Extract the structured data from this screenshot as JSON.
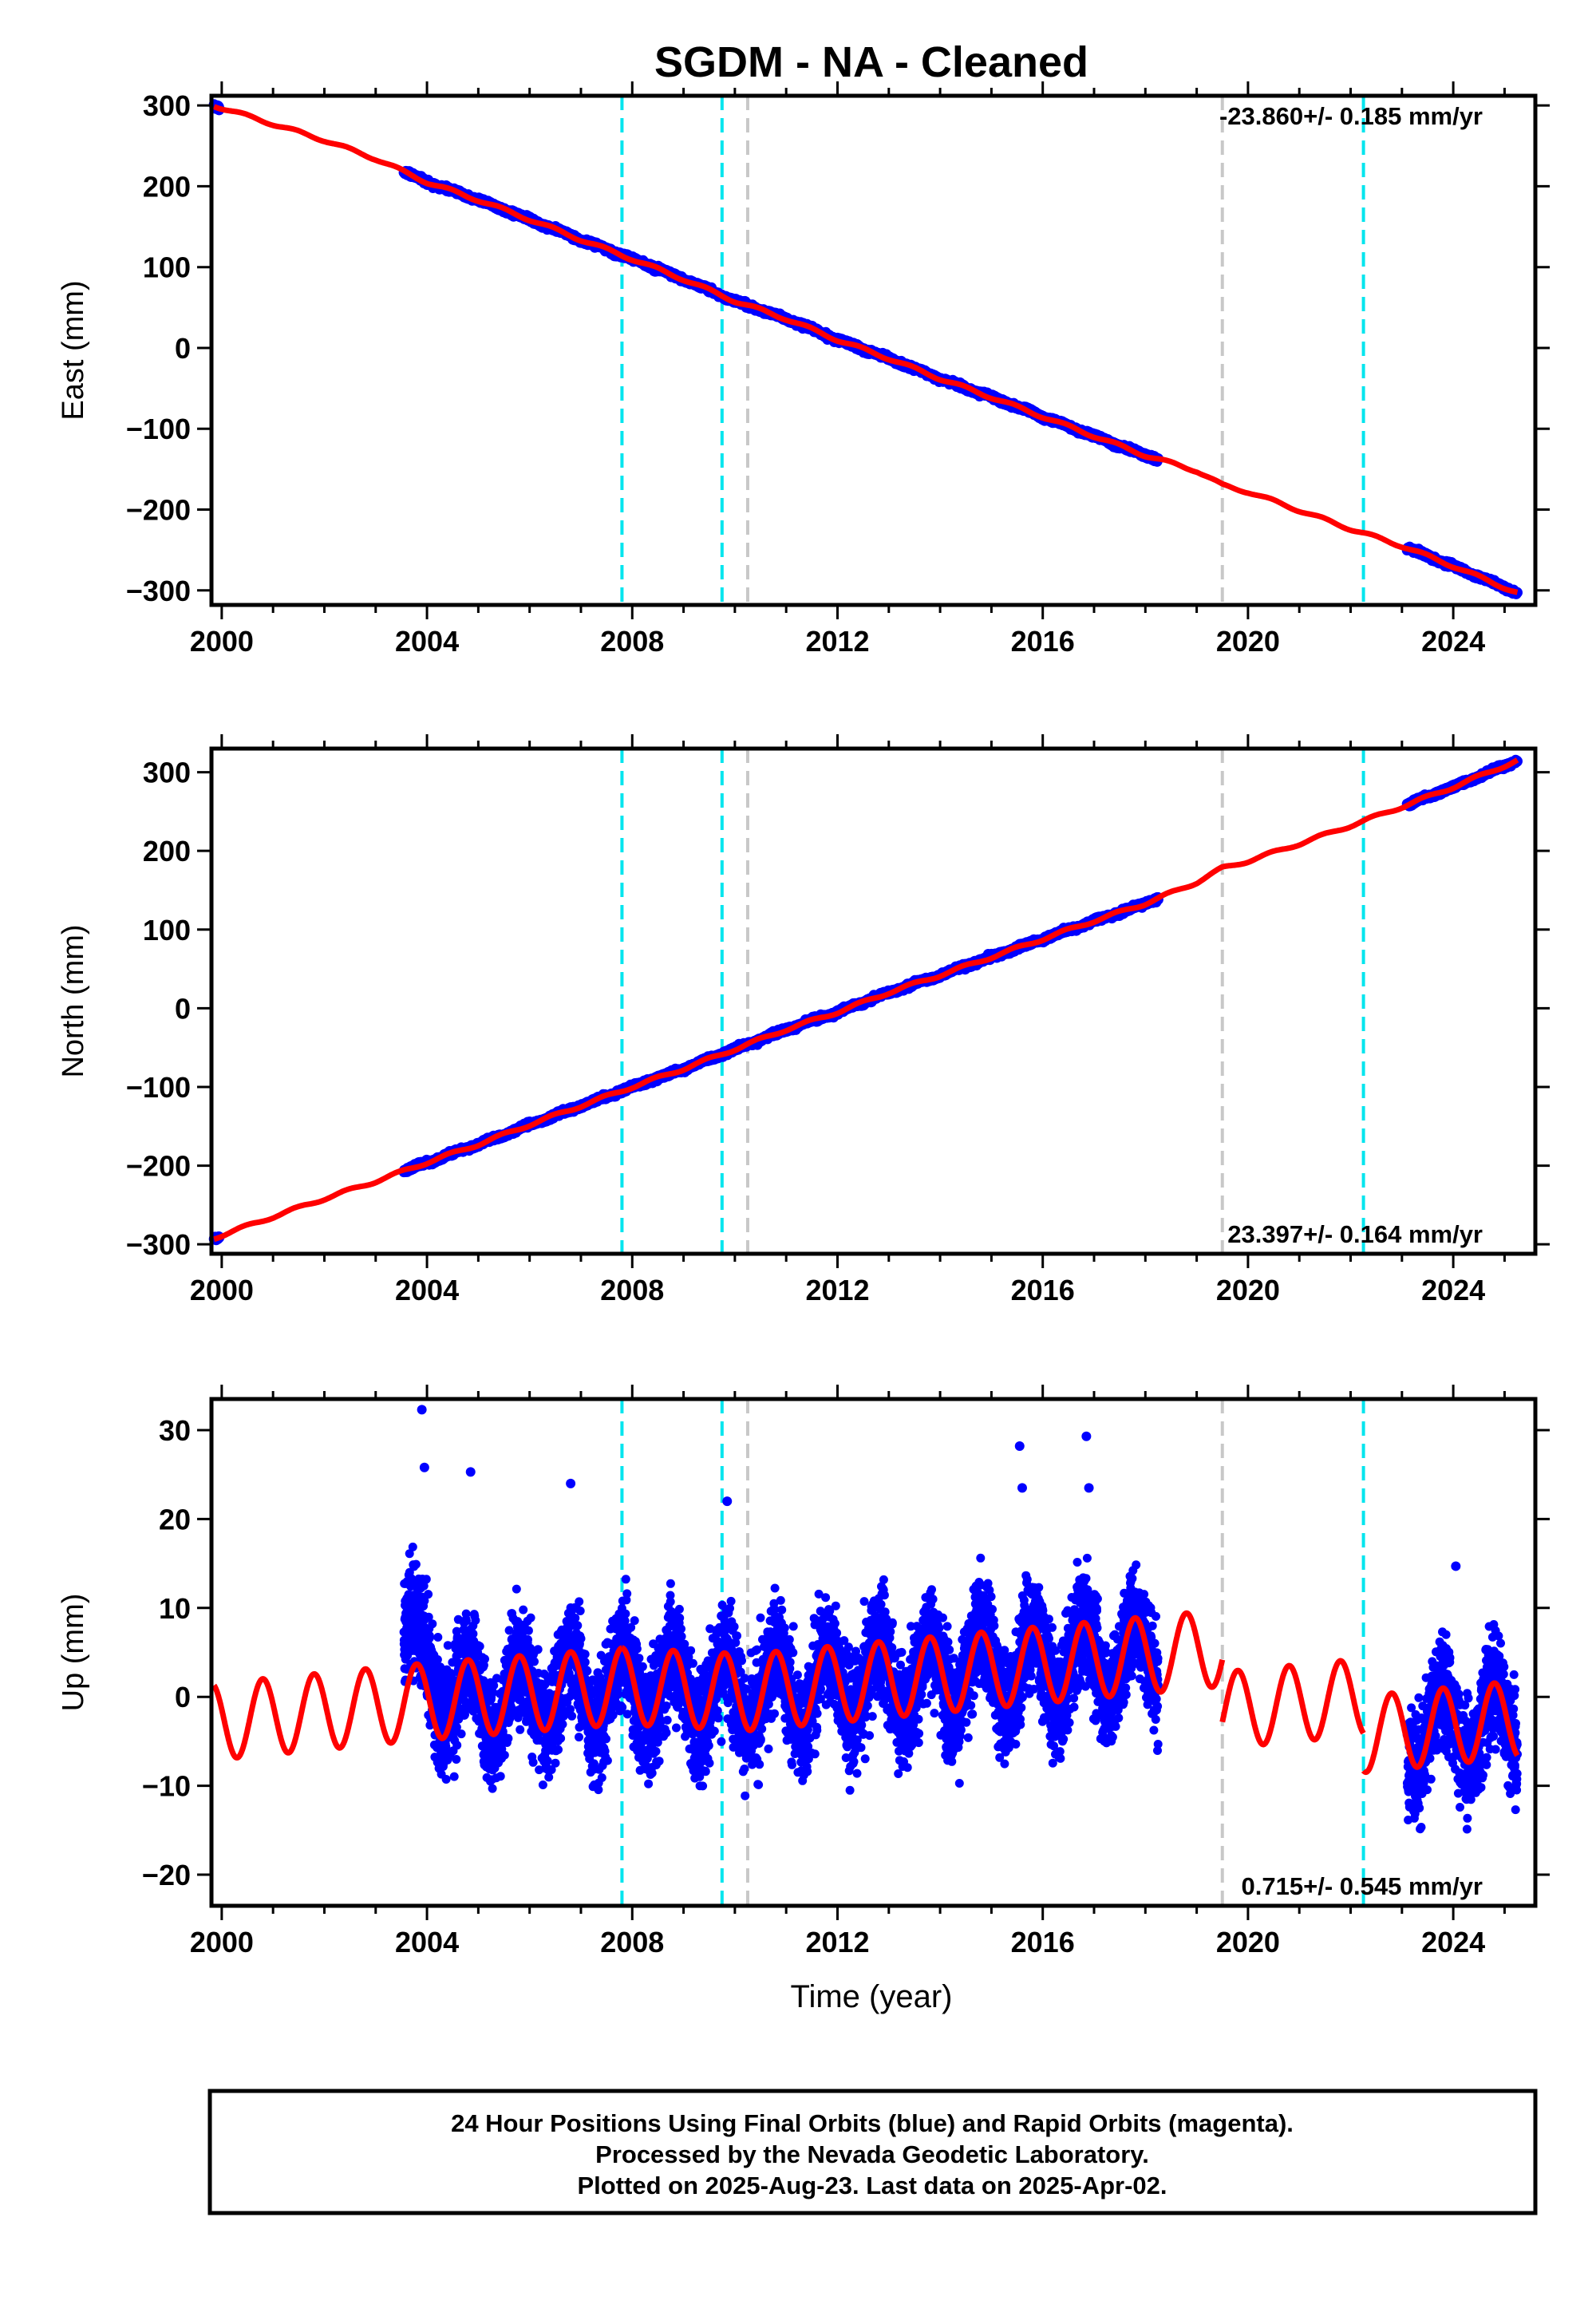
{
  "chart_data": {
    "title": "SGDM  - NA - Cleaned",
    "xlabel": "Time (year)",
    "x_ticks": [
      "2000",
      "2004",
      "2008",
      "2012",
      "2016",
      "2020",
      "2024"
    ],
    "xlim": [
      1999.8,
      2025.6
    ],
    "event_lines": [
      {
        "x": 2007.8,
        "color": "#00e5ee"
      },
      {
        "x": 2009.75,
        "color": "#00e5ee"
      },
      {
        "x": 2010.25,
        "color": "#c8c8c8"
      },
      {
        "x": 2019.5,
        "color": "#c8c8c8"
      },
      {
        "x": 2022.25,
        "color": "#00e5ee"
      }
    ],
    "colors": {
      "data": "#0000ff",
      "model": "#ff0000"
    },
    "panels": [
      {
        "type": "scatter",
        "ylabel": "East (mm)",
        "ylim": [
          -318,
          312
        ],
        "y_ticks": [
          "300",
          "200",
          "100",
          "0",
          "−100",
          "−200",
          "−300"
        ],
        "y_tick_values": [
          300,
          200,
          100,
          0,
          -100,
          -200,
          -300
        ],
        "rate_label": "-23.860+/- 0.185 mm/yr",
        "rate_position": "top-right",
        "data_ranges": [
          [
            1999.85,
            1999.95
          ],
          [
            2003.55,
            2018.25
          ],
          [
            2023.1,
            2025.25
          ]
        ],
        "model_points": [
          [
            1999.85,
            300
          ],
          [
            2001.0,
            277
          ],
          [
            2002.0,
            257
          ],
          [
            2003.0,
            234
          ],
          [
            2004.0,
            205
          ],
          [
            2005.0,
            183
          ],
          [
            2006.0,
            159
          ],
          [
            2007.0,
            134
          ],
          [
            2008.0,
            110
          ],
          [
            2009.0,
            85
          ],
          [
            2010.0,
            58
          ],
          [
            2011.0,
            36
          ],
          [
            2012.0,
            10
          ],
          [
            2013.0,
            -13
          ],
          [
            2014.0,
            -38
          ],
          [
            2015.0,
            -61
          ],
          [
            2016.0,
            -85
          ],
          [
            2017.0,
            -109
          ],
          [
            2018.0,
            -133
          ],
          [
            2019.0,
            -152
          ],
          [
            2019.5,
            -170
          ],
          [
            2020.0,
            -178
          ],
          [
            2021.0,
            -201
          ],
          [
            2022.0,
            -224
          ],
          [
            2023.0,
            -245
          ],
          [
            2024.0,
            -270
          ],
          [
            2025.25,
            -303
          ]
        ],
        "noise_mm": 3.5,
        "wiggle_mm": 1.0
      },
      {
        "type": "scatter",
        "ylabel": "North (mm)",
        "ylim": [
          -312,
          330
        ],
        "y_ticks": [
          "300",
          "200",
          "100",
          "0",
          "−100",
          "−200",
          "−300"
        ],
        "y_tick_values": [
          300,
          200,
          100,
          0,
          -100,
          -200,
          -300
        ],
        "rate_label": "23.397+/- 0.164 mm/yr",
        "rate_position": "bottom-right",
        "data_ranges": [
          [
            1999.85,
            1999.95
          ],
          [
            2003.55,
            2018.25
          ],
          [
            2023.1,
            2025.25
          ]
        ],
        "model_points": [
          [
            1999.85,
            -292
          ],
          [
            2001.0,
            -265
          ],
          [
            2002.0,
            -242
          ],
          [
            2003.0,
            -220
          ],
          [
            2004.0,
            -196
          ],
          [
            2005.0,
            -173
          ],
          [
            2006.0,
            -148
          ],
          [
            2007.0,
            -124
          ],
          [
            2008.0,
            -100
          ],
          [
            2009.0,
            -77
          ],
          [
            2010.0,
            -52
          ],
          [
            2011.0,
            -27
          ],
          [
            2012.0,
            -5
          ],
          [
            2013.0,
            20
          ],
          [
            2014.0,
            42
          ],
          [
            2015.0,
            65
          ],
          [
            2016.0,
            88
          ],
          [
            2017.0,
            111
          ],
          [
            2018.0,
            133
          ],
          [
            2019.0,
            160
          ],
          [
            2019.5,
            178
          ],
          [
            2020.0,
            187
          ],
          [
            2021.0,
            209
          ],
          [
            2022.0,
            232
          ],
          [
            2023.0,
            256
          ],
          [
            2024.0,
            281
          ],
          [
            2025.25,
            315
          ]
        ],
        "noise_mm": 3.5,
        "wiggle_mm": 1.0
      },
      {
        "type": "scatter",
        "ylabel": "Up (mm)",
        "ylim": [
          -23.5,
          33.5
        ],
        "y_ticks": [
          "30",
          "20",
          "10",
          "0",
          "−10",
          "−20"
        ],
        "y_tick_values": [
          30,
          20,
          10,
          0,
          -10,
          -20
        ],
        "rate_label": "0.715+/- 0.545 mm/yr",
        "rate_position": "bottom-right",
        "data_ranges": [
          [
            1999.85,
            1999.95
          ],
          [
            2003.55,
            2018.25
          ],
          [
            2023.1,
            2025.25
          ]
        ],
        "seasonal": {
          "amplitude_mm": 4.3,
          "phase_year_fraction": 0.8,
          "segments": [
            {
              "start": 1999.85,
              "end": 2004.0,
              "offset_start": -2.8,
              "offset_end": -0.5
            },
            {
              "start": 2004.0,
              "end": 2007.8,
              "offset_start": -0.5,
              "offset_end": 1.2
            },
            {
              "start": 2007.8,
              "end": 2010.25,
              "offset_start": 1.2,
              "offset_end": 0.5
            },
            {
              "start": 2010.25,
              "end": 2019.5,
              "offset_start": 0.5,
              "offset_end": 5.5
            },
            {
              "start": 2019.5,
              "end": 2022.25,
              "offset_start": -1.5,
              "offset_end": 0.0
            },
            {
              "start": 2022.25,
              "end": 2025.25,
              "offset_start": -4.2,
              "offset_end": -2.5
            }
          ]
        },
        "noise_mm": 4.3,
        "outliers": [
          [
            2003.9,
            32.3
          ],
          [
            2003.95,
            25.8
          ],
          [
            2004.85,
            25.3
          ],
          [
            2006.8,
            24.0
          ],
          [
            2009.85,
            22.0
          ],
          [
            2015.55,
            28.2
          ],
          [
            2016.85,
            29.3
          ],
          [
            2015.6,
            23.5
          ],
          [
            2016.9,
            23.5
          ],
          [
            2024.05,
            14.7
          ]
        ]
      }
    ]
  },
  "footer": {
    "line1": "24 Hour Positions Using Final Orbits (blue) and Rapid Orbits (magenta).",
    "line2": "Processed by the Nevada Geodetic Laboratory.",
    "line3": "Plotted on 2025-Aug-23. Last data on 2025-Apr-02."
  }
}
